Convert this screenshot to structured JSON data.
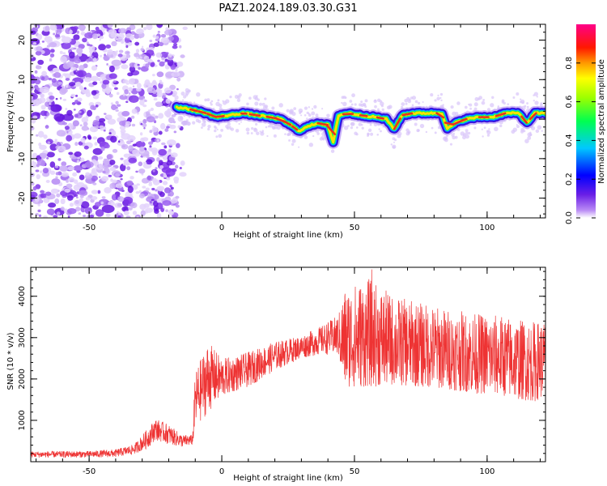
{
  "title": "PAZ1.2024.189.03.30.G31",
  "colors": {
    "snr_line": "#ee3333",
    "ridge_high": "#e8321e",
    "ridge_mid": "#22ee44",
    "ridge_edge": "#3c0fd8",
    "noise_purple": "#7a2ef0"
  },
  "chart_data": [
    {
      "type": "heatmap",
      "title": "PAZ1.2024.189.03.30.G31",
      "xlabel": "Height of straight line (km)",
      "ylabel": "Frequency (Hz)",
      "xlim": [
        -72,
        122
      ],
      "ylim": [
        -25,
        24
      ],
      "xticks": [
        -50,
        0,
        50,
        100
      ],
      "yticks": [
        -20,
        -10,
        0,
        10,
        20
      ],
      "colorbar": {
        "label": "Normalized spectral amplitude",
        "range": [
          0,
          1
        ],
        "ticks": [
          "0.0",
          "0.2",
          "0.4",
          "0.6",
          "0.8"
        ],
        "colormap": "rainbow (purple→blue→cyan→green→yellow→orange→red→magenta)"
      },
      "noise_region_x": [
        -72,
        -17
      ],
      "ridge": {
        "x": [
          -17,
          -12,
          -6,
          -2,
          3,
          8,
          13,
          18,
          22,
          26,
          29,
          32,
          36,
          40,
          42,
          44,
          48,
          52,
          58,
          62,
          65,
          68,
          72,
          78,
          83,
          85,
          88,
          92,
          97,
          102,
          107,
          112,
          115,
          118,
          122
        ],
        "freq": [
          3,
          2.5,
          1.5,
          0.5,
          1,
          1.5,
          1,
          0.5,
          0,
          -1.5,
          -3,
          -2,
          -1,
          -1.5,
          -6,
          1,
          1.5,
          1,
          0.5,
          0,
          -2.5,
          1,
          1.5,
          1.5,
          1.5,
          -2.5,
          -1,
          0,
          0.5,
          0.5,
          1.5,
          1.5,
          -1,
          1.5,
          1.5
        ]
      }
    },
    {
      "type": "line",
      "xlabel": "Height of straight line (km)",
      "ylabel": "SNR (10 * v/v)",
      "xlim": [
        -72,
        122
      ],
      "ylim": [
        0,
        4700
      ],
      "xticks": [
        -50,
        0,
        50,
        100
      ],
      "yticks": [
        1000,
        2000,
        3000,
        4000
      ],
      "series": [
        {
          "envelope_x": [
            -72,
            -50,
            -40,
            -33,
            -28,
            -25,
            -20,
            -15,
            -11,
            -10,
            -5,
            0,
            5,
            10,
            20,
            30,
            38,
            44,
            46,
            55,
            65,
            75,
            85,
            95,
            105,
            112,
            118,
            122
          ],
          "envelope_low": [
            100,
            100,
            110,
            180,
            320,
            520,
            420,
            350,
            400,
            800,
            1200,
            1550,
            1700,
            1800,
            2200,
            2500,
            2600,
            2550,
            1800,
            1800,
            1850,
            1800,
            1750,
            1650,
            1600,
            1500,
            1450,
            1600
          ],
          "envelope_high": [
            250,
            260,
            300,
            420,
            800,
            1050,
            900,
            650,
            650,
            2200,
            2900,
            2500,
            2550,
            2650,
            2900,
            3050,
            3300,
            3550,
            4200,
            4450,
            4000,
            3850,
            3700,
            3600,
            3550,
            3450,
            3400,
            3450
          ],
          "peak_max": 4650
        }
      ]
    }
  ]
}
